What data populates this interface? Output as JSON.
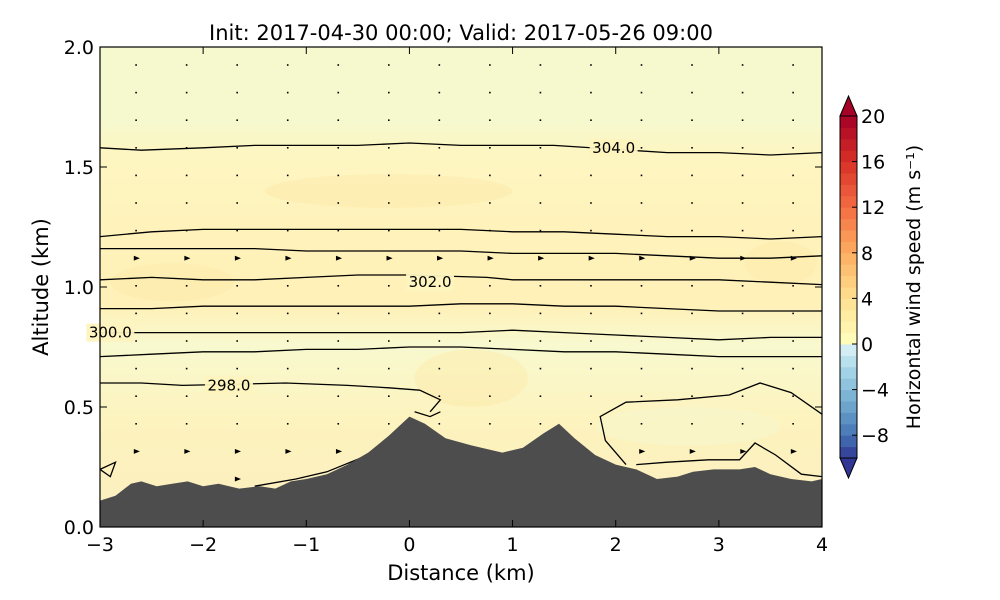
{
  "chart_data": {
    "type": "heatmap",
    "title": "Init: 2017-04-30 00:00; Valid: 2017-05-26 09:00",
    "xlabel": "Distance (km)",
    "ylabel": "Altitude (km)",
    "xlim": [
      -3,
      4
    ],
    "ylim": [
      0,
      2
    ],
    "xticks": [
      -3,
      -2,
      -1,
      0,
      1,
      2,
      3,
      4
    ],
    "yticks": [
      0.0,
      0.5,
      1.0,
      1.5,
      2.0
    ],
    "xtick_labels": [
      "−3",
      "−2",
      "−1",
      "0",
      "1",
      "2",
      "3",
      "4"
    ],
    "ytick_labels": [
      "0.0",
      "0.5",
      "1.0",
      "1.5",
      "2.0"
    ],
    "colorbar": {
      "label": "Horizontal wind speed (m s⁻¹)",
      "range": [
        -10,
        20
      ],
      "extend": "both",
      "colormap": "RdYlBu_r",
      "ticks": [
        -8,
        -4,
        0,
        4,
        8,
        12,
        16,
        20
      ],
      "tick_labels": [
        "−8",
        "−4",
        "0",
        "4",
        "8",
        "12",
        "16",
        "20"
      ]
    },
    "colors": {
      "terrain": "#4d4d4d",
      "background_field": "#f7f8cc",
      "positive_field": "#fdefb0"
    },
    "contour_labels": [
      {
        "text": "304.0",
        "x": 1.98,
        "y": 1.58
      },
      {
        "text": "302.0",
        "x": 0.2,
        "y": 1.02
      },
      {
        "text": "300.0",
        "x": -2.9,
        "y": 0.81
      },
      {
        "text": "298.0",
        "x": -1.75,
        "y": 0.59
      }
    ],
    "contours": [
      {
        "level": "304.0",
        "points": [
          [
            -3,
            1.58
          ],
          [
            -2.6,
            1.57
          ],
          [
            -2,
            1.58
          ],
          [
            -1.5,
            1.59
          ],
          [
            -1,
            1.59
          ],
          [
            -0.5,
            1.59
          ],
          [
            0,
            1.6
          ],
          [
            0.5,
            1.59
          ],
          [
            1,
            1.59
          ],
          [
            1.4,
            1.59
          ],
          [
            2.5,
            1.56
          ],
          [
            3,
            1.56
          ],
          [
            3.5,
            1.55
          ],
          [
            4,
            1.56
          ]
        ]
      },
      {
        "level": "",
        "points": [
          [
            -3,
            1.21
          ],
          [
            -2.5,
            1.23
          ],
          [
            -2,
            1.24
          ],
          [
            -1.5,
            1.24
          ],
          [
            -1,
            1.24
          ],
          [
            -0.5,
            1.24
          ],
          [
            0,
            1.24
          ],
          [
            0.5,
            1.24
          ],
          [
            1,
            1.23
          ],
          [
            1.5,
            1.23
          ],
          [
            2,
            1.22
          ],
          [
            2.5,
            1.21
          ],
          [
            3,
            1.21
          ],
          [
            3.5,
            1.2
          ],
          [
            4,
            1.21
          ]
        ]
      },
      {
        "level": "",
        "points": [
          [
            -3,
            1.16
          ],
          [
            -2.5,
            1.16
          ],
          [
            -2,
            1.16
          ],
          [
            -1.5,
            1.16
          ],
          [
            -1,
            1.15
          ],
          [
            -0.5,
            1.15
          ],
          [
            0,
            1.15
          ],
          [
            0.5,
            1.15
          ],
          [
            1,
            1.14
          ],
          [
            1.5,
            1.14
          ],
          [
            2,
            1.14
          ],
          [
            2.5,
            1.13
          ],
          [
            3,
            1.12
          ],
          [
            3.5,
            1.12
          ],
          [
            4,
            1.13
          ]
        ]
      },
      {
        "level": "302.0",
        "points": [
          [
            -3,
            1.03
          ],
          [
            -2.5,
            1.04
          ],
          [
            -2,
            1.03
          ],
          [
            -1.5,
            1.03
          ],
          [
            -1,
            1.04
          ],
          [
            -0.5,
            1.05
          ],
          [
            0,
            1.05
          ],
          [
            0.75,
            1.04
          ],
          [
            1,
            1.03
          ],
          [
            1.5,
            1.03
          ],
          [
            2,
            1.03
          ],
          [
            2.5,
            1.03
          ],
          [
            3,
            1.03
          ],
          [
            3.5,
            1.02
          ],
          [
            4,
            1.01
          ]
        ]
      },
      {
        "level": "",
        "points": [
          [
            -3,
            0.91
          ],
          [
            -2.5,
            0.91
          ],
          [
            -2,
            0.92
          ],
          [
            -1.5,
            0.92
          ],
          [
            -1,
            0.92
          ],
          [
            -0.5,
            0.92
          ],
          [
            0,
            0.92
          ],
          [
            0.5,
            0.93
          ],
          [
            1,
            0.93
          ],
          [
            1.5,
            0.92
          ],
          [
            2,
            0.92
          ],
          [
            2.5,
            0.91
          ],
          [
            3,
            0.9
          ],
          [
            3.5,
            0.9
          ],
          [
            4,
            0.9
          ]
        ]
      },
      {
        "level": "300.0",
        "points": [
          [
            -3,
            0.81
          ],
          [
            -2.4,
            0.81
          ],
          [
            -2,
            0.81
          ],
          [
            -1.5,
            0.81
          ],
          [
            -1,
            0.81
          ],
          [
            -0.5,
            0.81
          ],
          [
            0,
            0.81
          ],
          [
            0.5,
            0.81
          ],
          [
            1,
            0.82
          ],
          [
            1.5,
            0.81
          ],
          [
            2,
            0.8
          ],
          [
            2.5,
            0.79
          ],
          [
            3,
            0.78
          ],
          [
            3.5,
            0.79
          ],
          [
            4,
            0.79
          ]
        ]
      },
      {
        "level": "",
        "points": [
          [
            -3,
            0.71
          ],
          [
            -2.5,
            0.72
          ],
          [
            -2,
            0.73
          ],
          [
            -1.5,
            0.73
          ],
          [
            -1,
            0.74
          ],
          [
            -0.5,
            0.74
          ],
          [
            0,
            0.75
          ],
          [
            0.5,
            0.75
          ],
          [
            1,
            0.74
          ],
          [
            1.5,
            0.73
          ],
          [
            2,
            0.73
          ],
          [
            2.5,
            0.72
          ],
          [
            3,
            0.71
          ],
          [
            3.5,
            0.71
          ],
          [
            4,
            0.71
          ]
        ]
      },
      {
        "level": "298.0",
        "points": [
          [
            -3,
            0.6
          ],
          [
            -2.6,
            0.6
          ],
          [
            -2.2,
            0.59
          ],
          [
            -1.2,
            0.6
          ],
          [
            -0.6,
            0.59
          ],
          [
            -0.2,
            0.58
          ],
          [
            0.1,
            0.57
          ],
          [
            0.3,
            0.53
          ],
          [
            0.2,
            0.48
          ]
        ]
      },
      {
        "level": "",
        "points": [
          [
            0.05,
            0.48
          ],
          [
            0.2,
            0.46
          ],
          [
            0.3,
            0.48
          ]
        ]
      },
      {
        "level": "",
        "points": [
          [
            2.1,
            0.26
          ],
          [
            1.9,
            0.36
          ],
          [
            1.85,
            0.46
          ],
          [
            2.1,
            0.52
          ],
          [
            2.6,
            0.53
          ],
          [
            3.1,
            0.55
          ],
          [
            3.4,
            0.6
          ],
          [
            3.7,
            0.56
          ],
          [
            4,
            0.47
          ]
        ]
      },
      {
        "level": "",
        "points": [
          [
            2.2,
            0.26
          ],
          [
            2.5,
            0.27
          ],
          [
            2.9,
            0.28
          ],
          [
            3.2,
            0.28
          ],
          [
            3.35,
            0.35
          ],
          [
            3.55,
            0.3
          ],
          [
            3.8,
            0.22
          ],
          [
            4,
            0.21
          ]
        ]
      },
      {
        "level": "",
        "points": [
          [
            -1.5,
            0.17
          ],
          [
            -1.1,
            0.2
          ],
          [
            -0.8,
            0.23
          ],
          [
            -0.4,
            0.3
          ]
        ]
      },
      {
        "level": "",
        "points": [
          [
            -3.0,
            0.24
          ],
          [
            -2.85,
            0.27
          ],
          [
            -2.9,
            0.21
          ],
          [
            -3.0,
            0.24
          ]
        ]
      }
    ],
    "terrain_profile": [
      [
        -3,
        0.11
      ],
      [
        -2.85,
        0.13
      ],
      [
        -2.7,
        0.18
      ],
      [
        -2.6,
        0.19
      ],
      [
        -2.45,
        0.17
      ],
      [
        -2.3,
        0.18
      ],
      [
        -2.15,
        0.19
      ],
      [
        -2,
        0.17
      ],
      [
        -1.85,
        0.18
      ],
      [
        -1.65,
        0.16
      ],
      [
        -1.45,
        0.17
      ],
      [
        -1.3,
        0.16
      ],
      [
        -1.15,
        0.19
      ],
      [
        -1.0,
        0.2
      ],
      [
        -0.8,
        0.22
      ],
      [
        -0.6,
        0.26
      ],
      [
        -0.4,
        0.31
      ],
      [
        -0.2,
        0.38
      ],
      [
        0.0,
        0.46
      ],
      [
        0.15,
        0.43
      ],
      [
        0.35,
        0.37
      ],
      [
        0.6,
        0.34
      ],
      [
        0.9,
        0.31
      ],
      [
        1.1,
        0.33
      ],
      [
        1.3,
        0.39
      ],
      [
        1.45,
        0.43
      ],
      [
        1.6,
        0.37
      ],
      [
        1.8,
        0.3
      ],
      [
        2.0,
        0.26
      ],
      [
        2.2,
        0.24
      ],
      [
        2.4,
        0.2
      ],
      [
        2.6,
        0.21
      ],
      [
        2.75,
        0.23
      ],
      [
        2.95,
        0.24
      ],
      [
        3.2,
        0.24
      ],
      [
        3.35,
        0.25
      ],
      [
        3.5,
        0.22
      ],
      [
        3.7,
        0.2
      ],
      [
        3.9,
        0.19
      ],
      [
        4,
        0.2
      ]
    ]
  }
}
